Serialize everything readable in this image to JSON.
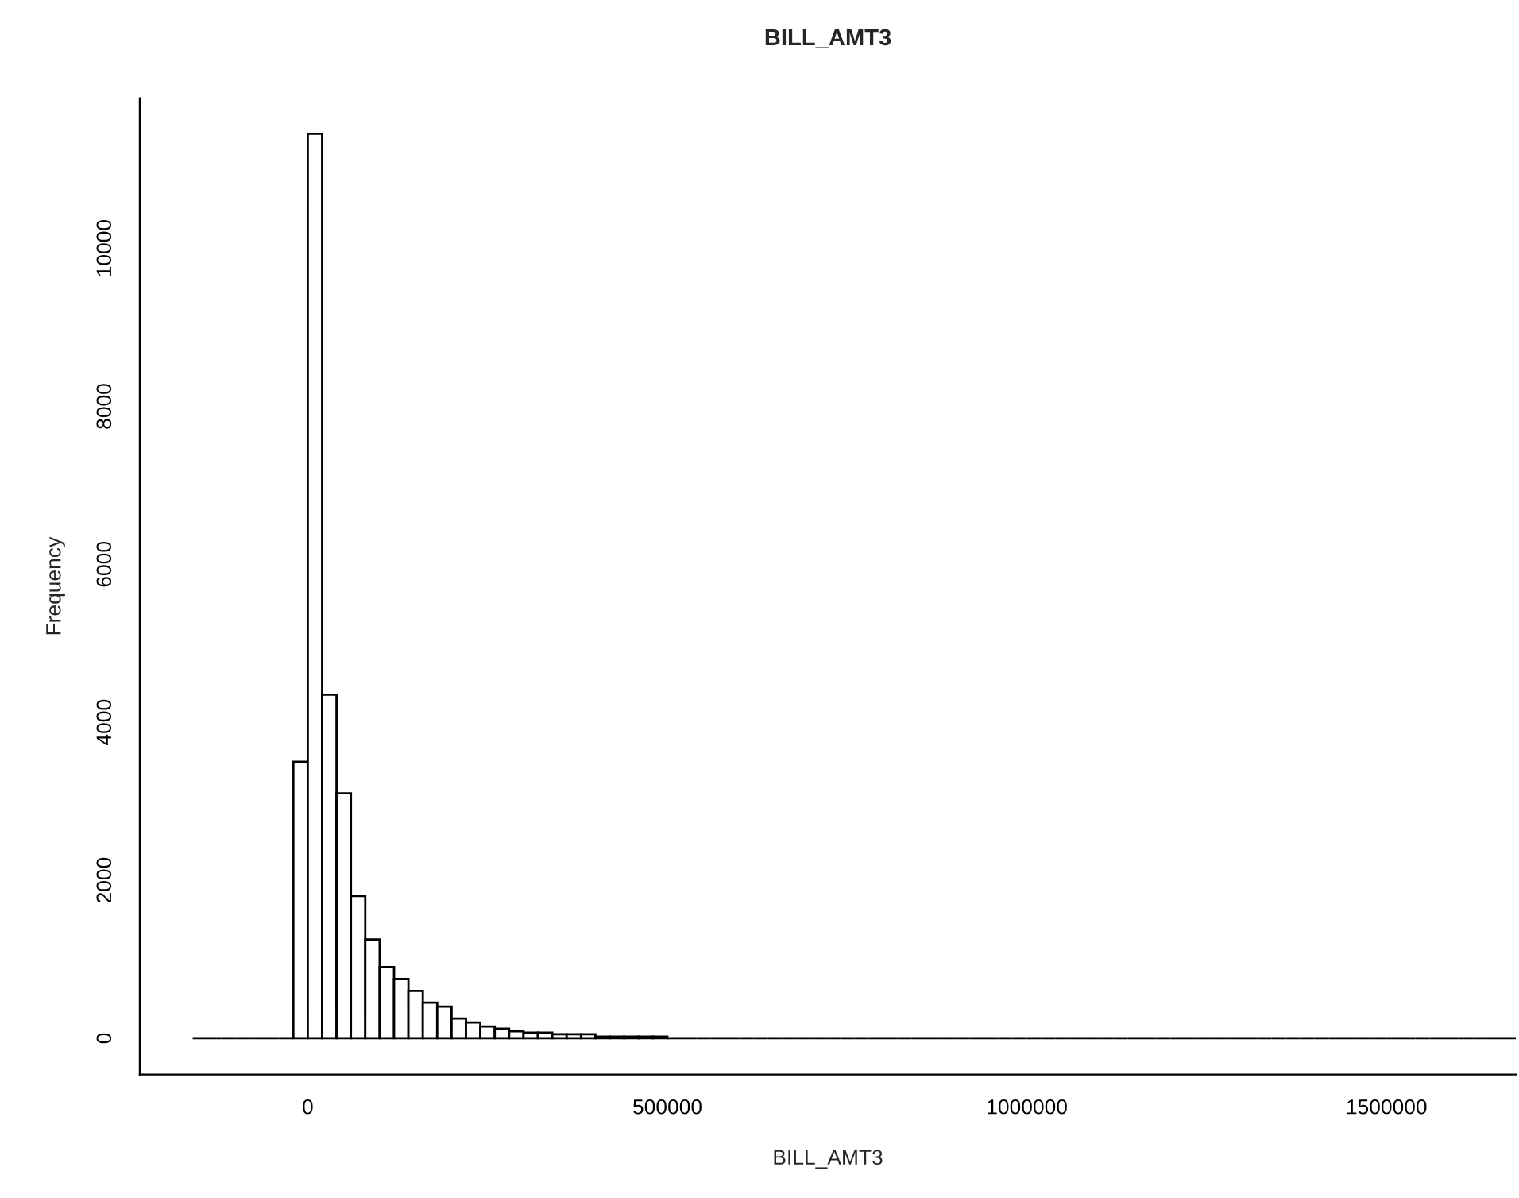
{
  "chart_data": {
    "type": "histogram",
    "title": "BILL_AMT3",
    "xlabel": "BILL_AMT3",
    "ylabel": "Frequency",
    "bins": [
      -160000,
      -140000,
      -120000,
      -100000,
      -80000,
      -60000,
      -40000,
      -20000,
      0,
      20000,
      40000,
      60000,
      80000,
      100000,
      120000,
      140000,
      160000,
      180000,
      200000,
      220000,
      240000,
      260000,
      280000,
      300000,
      320000,
      340000,
      360000,
      380000,
      400000,
      420000,
      440000,
      460000,
      480000,
      500000,
      520000,
      540000,
      560000,
      580000,
      600000,
      620000,
      640000,
      660000,
      680000,
      700000,
      720000,
      740000,
      760000,
      780000,
      800000,
      820000,
      840000,
      860000,
      880000,
      900000,
      920000,
      940000,
      960000,
      980000,
      1000000,
      1020000,
      1040000,
      1060000,
      1080000,
      1100000,
      1120000,
      1140000,
      1160000,
      1180000,
      1200000,
      1220000,
      1240000,
      1260000,
      1280000,
      1300000,
      1320000,
      1340000,
      1360000,
      1380000,
      1400000,
      1420000,
      1440000,
      1460000,
      1480000,
      1500000,
      1520000,
      1540000,
      1560000,
      1580000,
      1600000,
      1620000,
      1640000,
      1660000,
      1680000
    ],
    "values": [
      0,
      0,
      0,
      0,
      0,
      0,
      0,
      3500,
      11450,
      4350,
      3100,
      1800,
      1250,
      900,
      750,
      600,
      450,
      400,
      250,
      200,
      150,
      120,
      90,
      70,
      70,
      50,
      50,
      50,
      20,
      20,
      20,
      20,
      20,
      0,
      0,
      0,
      0,
      0,
      0,
      0,
      0,
      0,
      0,
      0,
      0,
      0,
      0,
      0,
      0,
      0,
      0,
      0,
      0,
      0,
      0,
      0,
      0,
      0,
      0,
      0,
      0,
      0,
      0,
      0,
      0,
      0,
      0,
      0,
      0,
      0,
      0,
      0,
      0,
      0,
      0,
      0,
      0,
      0,
      0,
      0,
      0,
      0,
      0,
      0,
      0,
      0,
      0,
      0,
      0,
      0,
      0,
      0
    ],
    "xlim": [
      -233600,
      1680000
    ],
    "ylim": [
      -460,
      11900
    ],
    "xticks": [
      0,
      500000,
      1000000,
      1500000
    ],
    "yticks": [
      0,
      2000,
      4000,
      6000,
      8000,
      10000
    ],
    "grid": false,
    "legend": false
  }
}
